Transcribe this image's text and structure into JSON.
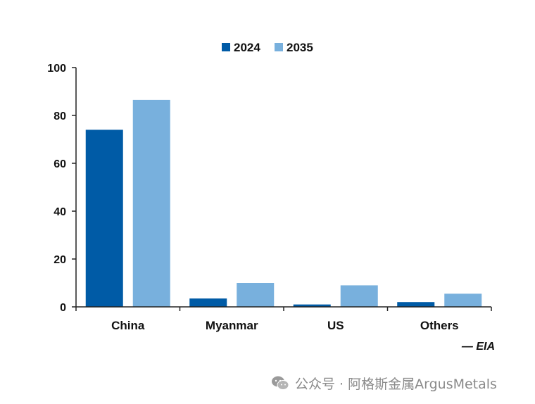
{
  "chart_data": {
    "type": "bar",
    "categories": [
      "China",
      "Myanmar",
      "US",
      "Others"
    ],
    "series": [
      {
        "name": "2024",
        "values": [
          74,
          3.5,
          1,
          2
        ],
        "color": "#005ba6"
      },
      {
        "name": "2035",
        "values": [
          86.5,
          10,
          9,
          5.5
        ],
        "color": "#78b0dd"
      }
    ],
    "ylim": [
      0,
      100
    ],
    "yticks": [
      0,
      20,
      40,
      60,
      80,
      100
    ],
    "ytick_labels": [
      "0",
      "20",
      "40",
      "60",
      "80",
      "100"
    ],
    "legend_position": "top-center",
    "grid": false,
    "title": "",
    "xlabel": "",
    "ylabel": "",
    "source": "— EIA"
  },
  "watermark": {
    "icon": "wechat-icon",
    "text": "公众号 · 阿格斯金属ArgusMetals"
  }
}
